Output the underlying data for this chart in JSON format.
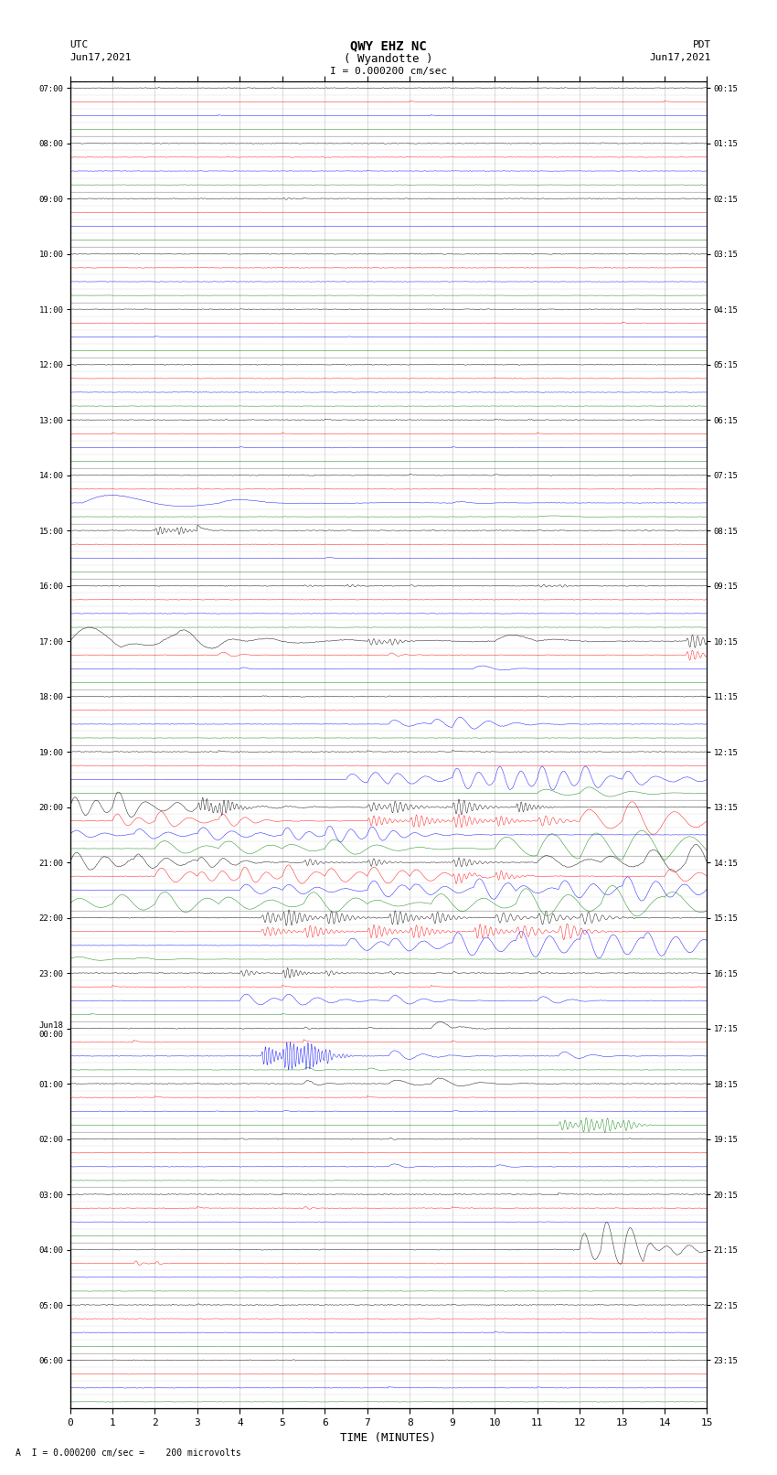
{
  "title_line1": "QWY EHZ NC",
  "title_line2": "( Wyandotte )",
  "scale_label": "I = 0.000200 cm/sec",
  "utc_label": "UTC",
  "utc_date": "Jun17,2021",
  "pdt_label": "PDT",
  "pdt_date": "Jun17,2021",
  "footer_label": "A  I = 0.000200 cm/sec =    200 microvolts",
  "xlabel": "TIME (MINUTES)",
  "left_times": [
    "07:00",
    "08:00",
    "09:00",
    "10:00",
    "11:00",
    "12:00",
    "13:00",
    "14:00",
    "15:00",
    "16:00",
    "17:00",
    "18:00",
    "19:00",
    "20:00",
    "21:00",
    "22:00",
    "23:00",
    "Jun18\n00:00",
    "01:00",
    "02:00",
    "03:00",
    "04:00",
    "05:00",
    "06:00"
  ],
  "right_times": [
    "00:15",
    "01:15",
    "02:15",
    "03:15",
    "04:15",
    "05:15",
    "06:15",
    "07:15",
    "08:15",
    "09:15",
    "10:15",
    "11:15",
    "12:15",
    "13:15",
    "14:15",
    "15:15",
    "16:15",
    "17:15",
    "18:15",
    "19:15",
    "20:15",
    "21:15",
    "22:15",
    "23:15"
  ],
  "num_hour_rows": 24,
  "sub_traces": 4,
  "minutes_per_trace": 15,
  "xlim": [
    0,
    15
  ],
  "xticks": [
    0,
    1,
    2,
    3,
    4,
    5,
    6,
    7,
    8,
    9,
    10,
    11,
    12,
    13,
    14,
    15
  ],
  "bg_color": "#ffffff",
  "sub_colors": [
    "black",
    "red",
    "blue",
    "green"
  ],
  "figsize": [
    8.5,
    16.13
  ],
  "dpi": 100
}
